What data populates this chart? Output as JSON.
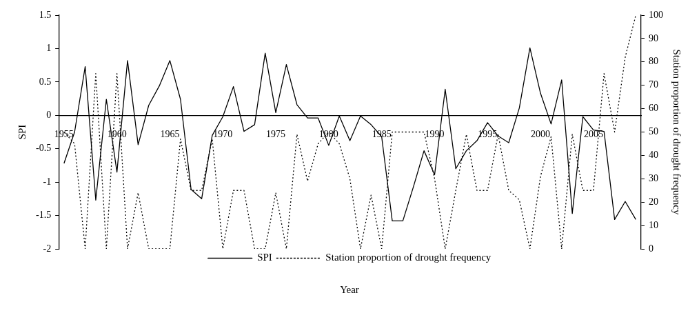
{
  "chart_data": {
    "type": "line",
    "categories": [
      "1955",
      null,
      null,
      null,
      null,
      "1960",
      null,
      null,
      null,
      null,
      "1965",
      null,
      null,
      null,
      null,
      "1970",
      null,
      null,
      null,
      null,
      "1975",
      null,
      null,
      null,
      null,
      "1980",
      null,
      null,
      null,
      null,
      "1985",
      null,
      null,
      null,
      null,
      "1990",
      null,
      null,
      null,
      null,
      "1995",
      null,
      null,
      null,
      null,
      "2000",
      null,
      null,
      null,
      null,
      "2005",
      null,
      null,
      null,
      null
    ],
    "series": [
      {
        "name": "SPI",
        "color": "#000000",
        "line_style": "solid",
        "values": [
          -0.72,
          -0.25,
          0.73,
          -1.27,
          0.24,
          -0.85,
          0.82,
          -0.44,
          0.15,
          0.44,
          0.82,
          0.24,
          -1.11,
          -1.25,
          -0.3,
          -0.02,
          0.43,
          -0.24,
          -0.14,
          0.93,
          0.04,
          0.76,
          0.16,
          -0.04,
          -0.04,
          -0.45,
          -0.01,
          -0.38,
          -0.01,
          -0.14,
          -0.32,
          -1.58,
          -1.58,
          -1.07,
          -0.53,
          -0.89,
          0.39,
          -0.8,
          -0.53,
          -0.38,
          -0.11,
          -0.31,
          -0.41,
          0.11,
          1.01,
          0.33,
          -0.13,
          0.53,
          -1.47,
          -0.02,
          -0.22,
          -0.24,
          -1.56,
          -1.29,
          -1.56
        ]
      },
      {
        "name": "Station proportion of drought frequency",
        "color": "#000000",
        "line_style": "dotted",
        "axis": "y2",
        "values": [
          50,
          45,
          0,
          75,
          0,
          75,
          0,
          24,
          0,
          0,
          0,
          47,
          25,
          25,
          47,
          0,
          25,
          25,
          0,
          0,
          24,
          0,
          49,
          29,
          45,
          50,
          45,
          30,
          0,
          23,
          0,
          50,
          50,
          50,
          50,
          30,
          0,
          25,
          49,
          25,
          25,
          49,
          25,
          21,
          0,
          31,
          48,
          0,
          49,
          25,
          25,
          75,
          50,
          82,
          100
        ]
      }
    ],
    "xlabel": "Year",
    "ylabel": "SPI",
    "y2label": "Station proportion of drought frequency",
    "ylim": [
      -2,
      1.5
    ],
    "yticks": [
      -2,
      -1.5,
      -1,
      -0.5,
      0,
      0.5,
      1,
      1.5
    ],
    "y2lim": [
      0,
      100
    ],
    "y2ticks": [
      0,
      10,
      20,
      30,
      40,
      50,
      60,
      70,
      80,
      90,
      100
    ],
    "grid": false,
    "legend": "bottom",
    "marker": "none"
  }
}
